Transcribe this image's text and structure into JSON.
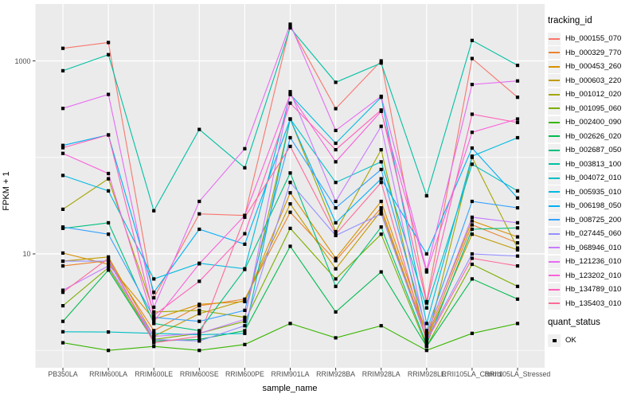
{
  "chart_data": {
    "type": "line",
    "title": "",
    "xlabel": "sample_name",
    "ylabel": "FPKM + 1",
    "y_scale": "log10",
    "y_major_breaks": [
      1000,
      10
    ],
    "y_minor_breaks": [
      100,
      1
    ],
    "ylim_log": [
      -0.18,
      3.59
    ],
    "panel_bg": "#EBEBEB",
    "grid_color": "#FFFFFF",
    "point_color": "#000000",
    "categories": [
      "PB350LA",
      "RRIM600LA",
      "RRIM600LE",
      "RRIM600SE",
      "RRIM600PE",
      "RRIM901LA",
      "RRIM928BA",
      "RRIM928LA",
      "RRIM928LE",
      "RRII105LA_Control",
      "RRII105LA_Stressed"
    ],
    "series": [
      {
        "name": "Hb_000155_070",
        "color": "#F8766D",
        "values": [
          1350,
          1550,
          3.5,
          26,
          25,
          2300,
          320,
          1000,
          3.2,
          1060,
          420
        ]
      },
      {
        "name": "Hb_000329_770",
        "color": "#EA8331",
        "values": [
          7.5,
          8.5,
          1.6,
          2.9,
          3.4,
          27,
          8.5,
          30,
          1.35,
          20,
          13
        ]
      },
      {
        "name": "Hb_000453_260",
        "color": "#D89000",
        "values": [
          10.2,
          7.8,
          2.1,
          3.0,
          3.2,
          43,
          9,
          35,
          1.5,
          22,
          15
        ]
      },
      {
        "name": "Hb_000603_220",
        "color": "#C09B00",
        "values": [
          8.4,
          9.3,
          1.4,
          2.4,
          3.3,
          33,
          7,
          28,
          1.3,
          16,
          11
        ]
      },
      {
        "name": "Hb_001012_020",
        "color": "#A3A500",
        "values": [
          29,
          60,
          2.5,
          2.6,
          2.2,
          250,
          17,
          120,
          1.2,
          100,
          11.5
        ]
      },
      {
        "name": "Hb_001095_060",
        "color": "#7CAE00",
        "values": [
          2.9,
          7.2,
          1.3,
          1.5,
          2.0,
          18.4,
          5.5,
          16,
          1.1,
          7.8,
          4.6
        ]
      },
      {
        "name": "Hb_002400_090",
        "color": "#39B600",
        "values": [
          1.2,
          1.0,
          1.1,
          1.0,
          1.15,
          1.9,
          1.35,
          1.8,
          1.0,
          1.5,
          1.9
        ]
      },
      {
        "name": "Hb_002626_020",
        "color": "#00BB4E",
        "values": [
          2.0,
          6.8,
          1.25,
          1.3,
          1.6,
          12,
          2.5,
          6.5,
          1.1,
          5.5,
          3.4
        ]
      },
      {
        "name": "Hb_002687_050",
        "color": "#00BF7D",
        "values": [
          18.4,
          21,
          1.9,
          1.6,
          6.9,
          69,
          4.6,
          19,
          1.15,
          18,
          18.6
        ]
      },
      {
        "name": "Hb_003813_100",
        "color": "#00C1A3",
        "values": [
          790,
          1160,
          28,
          195,
          78,
          2200,
          600,
          950,
          40,
          1630,
          900
        ]
      },
      {
        "name": "Hb_004072_010",
        "color": "#00BFC4",
        "values": [
          1.56,
          1.55,
          1.5,
          1.45,
          1.5,
          250,
          55,
          90,
          2.75,
          85,
          45
        ]
      },
      {
        "name": "Hb_005935_010",
        "color": "#00BAE0",
        "values": [
          65,
          45,
          5.5,
          8,
          7,
          450,
          140,
          420,
          1.9,
          103,
          160
        ]
      },
      {
        "name": "Hb_006198_050",
        "color": "#00B0F6",
        "values": [
          133,
          171,
          4.0,
          18,
          12.6,
          250,
          21,
          60,
          10,
          125,
          38
        ]
      },
      {
        "name": "Hb_008725_200",
        "color": "#35A2FF",
        "values": [
          19,
          16,
          2.2,
          2.0,
          2.6,
          160,
          30,
          75,
          1.6,
          35,
          30
        ]
      },
      {
        "name": "Hb_027445_060",
        "color": "#9590FF",
        "values": [
          8.4,
          8.4,
          1.3,
          1.25,
          1.8,
          55,
          15.5,
          26,
          1.3,
          10,
          9.5
        ]
      },
      {
        "name": "Hb_068946_010",
        "color": "#C77CFF",
        "values": [
          4.2,
          7.5,
          1.4,
          1.5,
          2.1,
          480,
          35,
          210,
          1.45,
          24,
          21
        ]
      },
      {
        "name": "Hb_121236_010",
        "color": "#E76BF3",
        "values": [
          322,
          450,
          2.8,
          35,
          123,
          2400,
          190,
          430,
          6.8,
          570,
          620
        ]
      },
      {
        "name": "Hb_123202_010",
        "color": "#FA62DB",
        "values": [
          110,
          68,
          2.0,
          7.9,
          25,
          450,
          90,
          300,
          6.5,
          182,
          250
        ]
      },
      {
        "name": "Hb_134789_010",
        "color": "#FF62BC",
        "values": [
          126,
          171,
          2.3,
          5.2,
          16.2,
          365,
          120,
          310,
          3.1,
          280,
          230
        ]
      },
      {
        "name": "Hb_135403_010",
        "color": "#FF6A98",
        "values": [
          4.0,
          9.0,
          1.2,
          1.4,
          24,
          130,
          16,
          55,
          1.25,
          9.0,
          7.5
        ]
      }
    ]
  },
  "legend": {
    "tracking_title": "tracking_id",
    "quant_title": "quant_status",
    "quant_items": [
      {
        "label": "OK"
      }
    ]
  }
}
